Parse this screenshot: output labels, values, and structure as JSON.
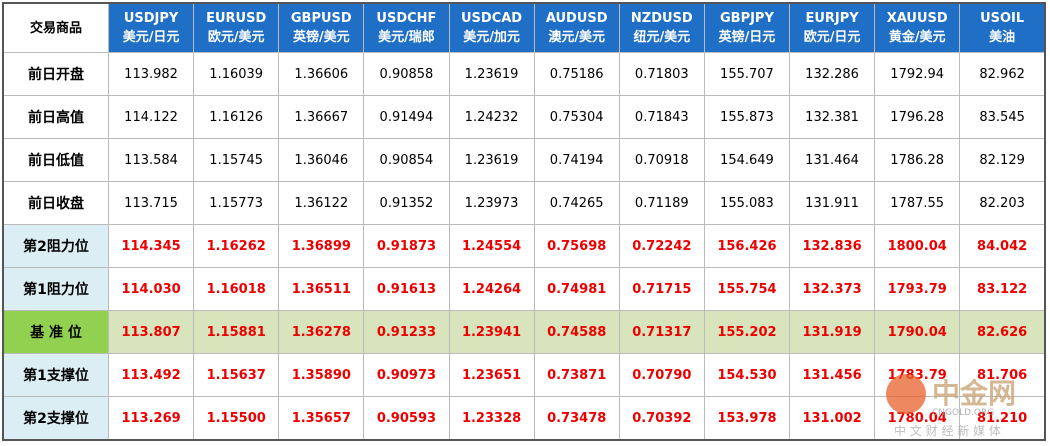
{
  "table": {
    "corner": "交易商品",
    "columns": [
      {
        "symbol": "USDJPY",
        "name": "美元/日元"
      },
      {
        "symbol": "EURUSD",
        "name": "欧元/美元"
      },
      {
        "symbol": "GBPUSD",
        "name": "英镑/美元"
      },
      {
        "symbol": "USDCHF",
        "name": "美元/瑞郎"
      },
      {
        "symbol": "USDCAD",
        "name": "美元/加元"
      },
      {
        "symbol": "AUDUSD",
        "name": "澳元/美元"
      },
      {
        "symbol": "NZDUSD",
        "name": "纽元/美元"
      },
      {
        "symbol": "GBPJPY",
        "name": "英镑/日元"
      },
      {
        "symbol": "EURJPY",
        "name": "欧元/日元"
      },
      {
        "symbol": "XAUUSD",
        "name": "黄金/美元"
      },
      {
        "symbol": "USOIL",
        "name": "美油"
      }
    ],
    "rows": [
      {
        "label": "前日开盘",
        "kind": "history",
        "cells": [
          "113.982",
          "1.16039",
          "1.36606",
          "0.90858",
          "1.23619",
          "0.75186",
          "0.71803",
          "155.707",
          "132.286",
          "1792.94",
          "82.962"
        ]
      },
      {
        "label": "前日高值",
        "kind": "history",
        "cells": [
          "114.122",
          "1.16126",
          "1.36667",
          "0.91494",
          "1.24232",
          "0.75304",
          "0.71843",
          "155.873",
          "132.381",
          "1796.28",
          "83.545"
        ]
      },
      {
        "label": "前日低值",
        "kind": "history",
        "cells": [
          "113.584",
          "1.15745",
          "1.36046",
          "0.90854",
          "1.23619",
          "0.74194",
          "0.70918",
          "154.649",
          "131.464",
          "1786.28",
          "82.129"
        ]
      },
      {
        "label": "前日收盘",
        "kind": "history",
        "cells": [
          "113.715",
          "1.15773",
          "1.36122",
          "0.91352",
          "1.23973",
          "0.74265",
          "0.71189",
          "155.083",
          "131.911",
          "1787.55",
          "82.203"
        ]
      },
      {
        "label": "第2阻力位",
        "kind": "level",
        "cells": [
          "114.345",
          "1.16262",
          "1.36899",
          "0.91873",
          "1.24554",
          "0.75698",
          "0.72242",
          "156.426",
          "132.836",
          "1800.04",
          "84.042"
        ]
      },
      {
        "label": "第1阻力位",
        "kind": "level",
        "cells": [
          "114.030",
          "1.16018",
          "1.36511",
          "0.91613",
          "1.24264",
          "0.74981",
          "0.71715",
          "155.754",
          "132.373",
          "1793.79",
          "83.122"
        ]
      },
      {
        "label": "基 准 位",
        "kind": "pivot",
        "cells": [
          "113.807",
          "1.15881",
          "1.36278",
          "0.91233",
          "1.23941",
          "0.74588",
          "0.71317",
          "155.202",
          "131.919",
          "1790.04",
          "82.626"
        ]
      },
      {
        "label": "第1支撑位",
        "kind": "level",
        "cells": [
          "113.492",
          "1.15637",
          "1.35890",
          "0.90973",
          "1.23651",
          "0.73871",
          "0.70790",
          "154.530",
          "131.456",
          "1783.79",
          "81.706"
        ]
      },
      {
        "label": "第2支撑位",
        "kind": "level",
        "cells": [
          "113.269",
          "1.15500",
          "1.35657",
          "0.90593",
          "1.23328",
          "0.73478",
          "0.70392",
          "153.978",
          "131.002",
          "1780.04",
          "81.210"
        ]
      }
    ]
  },
  "watermark": {
    "name": "中金网",
    "site": "CNGOLD.ORG",
    "slogan": "中 文 财 经 新 媒 体"
  }
}
